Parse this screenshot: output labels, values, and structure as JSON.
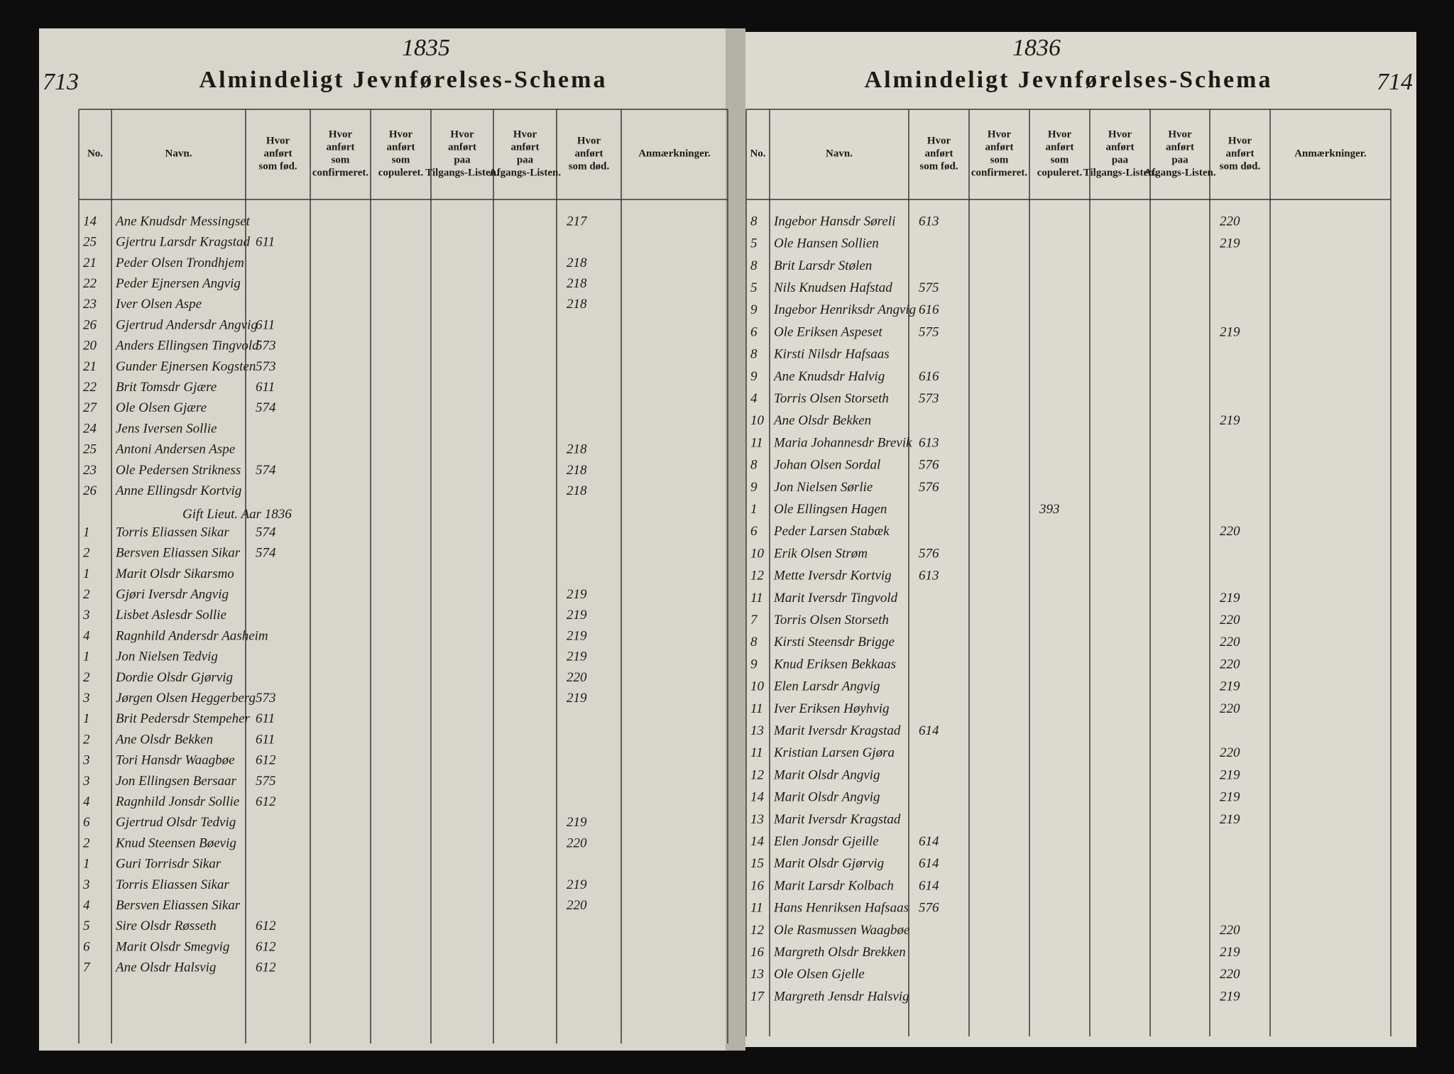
{
  "left_page": {
    "page_number": "713",
    "year": "1835",
    "title": "Almindeligt Jevnførelses-Schema",
    "columns": [
      "No.",
      "Navn.",
      "Hvor anført som fød.",
      "Hvor anført som confirmeret.",
      "Hvor anført som copuleret.",
      "Hvor anført paa Tilgangs-Listen.",
      "Hvor anført paa Afgangs-Listen.",
      "Hvor anført som død.",
      "Anmærkninger."
    ],
    "note": "Gift Lieut. Aar 1836",
    "rows": [
      {
        "no": "14",
        "name": "Ane Knudsdr Messingset",
        "dod": "217"
      },
      {
        "no": "25",
        "name": "Gjertru Larsdr Kragstad",
        "fod": "611"
      },
      {
        "no": "21",
        "name": "Peder Olsen Trondhjem",
        "dod": "218"
      },
      {
        "no": "22",
        "name": "Peder Ejnersen Angvig",
        "dod": "218"
      },
      {
        "no": "23",
        "name": "Iver Olsen Aspe",
        "dod": "218"
      },
      {
        "no": "26",
        "name": "Gjertrud Andersdr Angvig",
        "fod": "611"
      },
      {
        "no": "20",
        "name": "Anders Ellingsen Tingvold",
        "fod": "573"
      },
      {
        "no": "21",
        "name": "Gunder Ejnersen Kogsten",
        "fod": "573"
      },
      {
        "no": "22",
        "name": "Brit Tomsdr Gjære",
        "fod": "611"
      },
      {
        "no": "27",
        "name": "Ole Olsen Gjære",
        "fod": "574"
      },
      {
        "no": "24",
        "name": "Jens Iversen Sollie"
      },
      {
        "no": "25",
        "name": "Antoni Andersen Aspe",
        "dod": "218"
      },
      {
        "no": "23",
        "name": "Ole Pedersen Strikness",
        "fod": "574",
        "dod": "218"
      },
      {
        "no": "26",
        "name": "Anne Ellingsdr Kortvig",
        "dod": "218"
      },
      {
        "no": "1",
        "name": "Torris Eliassen Sikar",
        "fod": "574"
      },
      {
        "no": "2",
        "name": "Bersven Eliassen Sikar",
        "fod": "574"
      },
      {
        "no": "1",
        "name": "Marit Olsdr Sikarsmo"
      },
      {
        "no": "2",
        "name": "Gjøri Iversdr Angvig",
        "dod": "219"
      },
      {
        "no": "3",
        "name": "Lisbet Aslesdr Sollie",
        "dod": "219"
      },
      {
        "no": "4",
        "name": "Ragnhild Andersdr Aasheim",
        "dod": "219"
      },
      {
        "no": "1",
        "name": "Jon Nielsen Tedvig",
        "dod": "219"
      },
      {
        "no": "2",
        "name": "Dordie Olsdr Gjørvig",
        "dod": "220"
      },
      {
        "no": "3",
        "name": "Jørgen Olsen Heggerberg",
        "fod": "573",
        "dod": "219"
      },
      {
        "no": "1",
        "name": "Brit Pedersdr Stempeher",
        "fod": "611"
      },
      {
        "no": "2",
        "name": "Ane Olsdr Bekken",
        "fod": "611"
      },
      {
        "no": "3",
        "name": "Tori Hansdr Waagbøe",
        "fod": "612"
      },
      {
        "no": "3",
        "name": "Jon Ellingsen Bersaar",
        "fod": "575"
      },
      {
        "no": "4",
        "name": "Ragnhild Jonsdr Sollie",
        "fod": "612"
      },
      {
        "no": "6",
        "name": "Gjertrud Olsdr Tedvig",
        "dod": "219"
      },
      {
        "no": "2",
        "name": "Knud Steensen Bøevig",
        "dod": "220"
      },
      {
        "no": "1",
        "name": "Guri Torrisdr Sikar"
      },
      {
        "no": "3",
        "name": "Torris Eliassen Sikar",
        "dod": "219"
      },
      {
        "no": "4",
        "name": "Bersven Eliassen Sikar",
        "dod": "220"
      },
      {
        "no": "5",
        "name": "Sire Olsdr Røsseth",
        "fod": "612"
      },
      {
        "no": "6",
        "name": "Marit Olsdr Smegvig",
        "fod": "612"
      },
      {
        "no": "7",
        "name": "Ane Olsdr Halsvig",
        "fod": "612"
      }
    ]
  },
  "right_page": {
    "page_number": "714",
    "year": "1836",
    "title": "Almindeligt Jevnførelses-Schema",
    "columns": [
      "No.",
      "Navn.",
      "Hvor anført som fød.",
      "Hvor anført som confirmeret.",
      "Hvor anført som copuleret.",
      "Hvor anført paa Tilgangs-Listen.",
      "Hvor anført paa Afgangs-Listen.",
      "Hvor anført som død.",
      "Anmærkninger."
    ],
    "rows": [
      {
        "no": "8",
        "name": "Ingebor Hansdr Søreli",
        "fod": "613",
        "dod": "220"
      },
      {
        "no": "5",
        "name": "Ole Hansen Sollien",
        "dod": "219"
      },
      {
        "no": "8",
        "name": "Brit Larsdr Stølen"
      },
      {
        "no": "5",
        "name": "Nils Knudsen Hafstad",
        "fod": "575"
      },
      {
        "no": "9",
        "name": "Ingebor Henriksdr Angvig",
        "fod": "616"
      },
      {
        "no": "6",
        "name": "Ole Eriksen Aspeset",
        "fod": "575",
        "dod": "219"
      },
      {
        "no": "8",
        "name": "Kirsti Nilsdr Hafsaas"
      },
      {
        "no": "9",
        "name": "Ane Knudsdr Halvig",
        "fod": "616"
      },
      {
        "no": "4",
        "name": "Torris Olsen Storseth",
        "fod": "573"
      },
      {
        "no": "10",
        "name": "Ane Olsdr Bekken",
        "dod": "219"
      },
      {
        "no": "11",
        "name": "Maria Johannesdr Brevik",
        "fod": "613"
      },
      {
        "no": "8",
        "name": "Johan Olsen Sordal",
        "fod": "576"
      },
      {
        "no": "9",
        "name": "Jon Nielsen Sørlie",
        "fod": "576"
      },
      {
        "no": "1",
        "name": "Ole Ellingsen Hagen",
        "cop": "393"
      },
      {
        "no": "6",
        "name": "Peder Larsen Stabæk",
        "dod": "220"
      },
      {
        "no": "10",
        "name": "Erik Olsen Strøm",
        "fod": "576"
      },
      {
        "no": "12",
        "name": "Mette Iversdr Kortvig",
        "fod": "613"
      },
      {
        "no": "11",
        "name": "Marit Iversdr Tingvold",
        "dod": "219"
      },
      {
        "no": "7",
        "name": "Torris Olsen Storseth",
        "dod": "220"
      },
      {
        "no": "8",
        "name": "Kirsti Steensdr Brigge",
        "dod": "220"
      },
      {
        "no": "9",
        "name": "Knud Eriksen Bekkaas",
        "dod": "220"
      },
      {
        "no": "10",
        "name": "Elen Larsdr Angvig",
        "dod": "219"
      },
      {
        "no": "11",
        "name": "Iver Eriksen Høyhvig",
        "dod": "220"
      },
      {
        "no": "13",
        "name": "Marit Iversdr Kragstad",
        "fod": "614"
      },
      {
        "no": "11",
        "name": "Kristian Larsen Gjøra",
        "dod": "220"
      },
      {
        "no": "12",
        "name": "Marit Olsdr Angvig",
        "dod": "219"
      },
      {
        "no": "14",
        "name": "Marit Olsdr Angvig",
        "dod": "219"
      },
      {
        "no": "13",
        "name": "Marit Iversdr Kragstad",
        "dod": "219"
      },
      {
        "no": "14",
        "name": "Elen Jonsdr Gjeille",
        "fod": "614"
      },
      {
        "no": "15",
        "name": "Marit Olsdr Gjørvig",
        "fod": "614"
      },
      {
        "no": "16",
        "name": "Marit Larsdr Kolbach",
        "fod": "614"
      },
      {
        "no": "11",
        "name": "Hans Henriksen Hafsaas",
        "fod": "576"
      },
      {
        "no": "12",
        "name": "Ole Rasmussen Waagbøe",
        "dod": "220"
      },
      {
        "no": "16",
        "name": "Margreth Olsdr Brekken",
        "dod": "219"
      },
      {
        "no": "13",
        "name": "Ole Olsen Gjelle",
        "dod": "220"
      },
      {
        "no": "17",
        "name": "Margreth Jensdr Halsvig",
        "dod": "219"
      }
    ]
  }
}
